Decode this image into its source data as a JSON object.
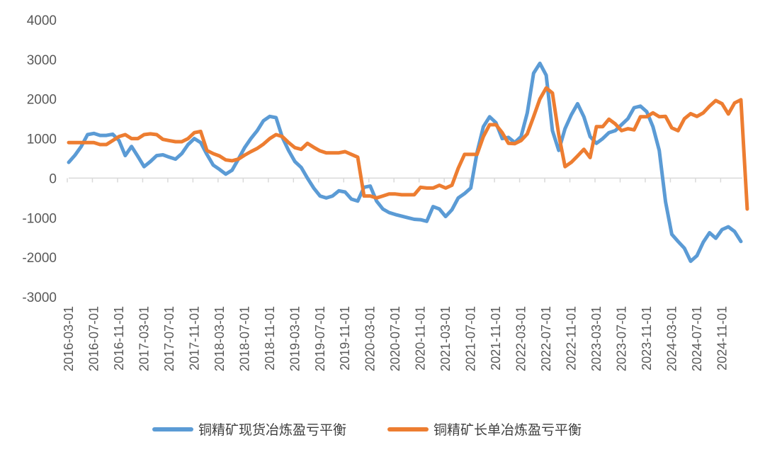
{
  "chart_data": {
    "type": "line",
    "title": "",
    "xlabel": "",
    "ylabel": "",
    "ylim": [
      -3000,
      4000
    ],
    "y_ticks": [
      4000,
      3000,
      2000,
      1000,
      0,
      -1000,
      -2000,
      -3000
    ],
    "x_tick_labels": [
      "2016-03-01",
      "2016-07-01",
      "2016-11-01",
      "2017-03-01",
      "2017-07-01",
      "2017-11-01",
      "2018-03-01",
      "2018-07-01",
      "2018-11-01",
      "2019-03-01",
      "2019-07-01",
      "2019-11-01",
      "2020-03-01",
      "2020-07-01",
      "2020-11-01",
      "2021-03-01",
      "2021-07-01",
      "2021-11-01",
      "2022-03-01",
      "2022-07-01",
      "2022-11-01",
      "2023-03-01",
      "2023-07-01",
      "2023-11-01",
      "2024-03-01",
      "2024-07-01",
      "2024-11-01"
    ],
    "x_start": "2016-03",
    "x_frequency": "monthly",
    "grid": false,
    "legend_position": "bottom",
    "series": [
      {
        "name": "铜精矿现货冶炼盈亏平衡",
        "color": "#5b9bd5",
        "values": [
          400,
          580,
          800,
          1100,
          1130,
          1080,
          1080,
          1110,
          950,
          570,
          800,
          550,
          290,
          420,
          570,
          590,
          530,
          480,
          620,
          850,
          1000,
          900,
          600,
          330,
          220,
          100,
          200,
          480,
          770,
          1000,
          1200,
          1450,
          1560,
          1530,
          1030,
          700,
          420,
          270,
          0,
          -250,
          -450,
          -500,
          -450,
          -320,
          -350,
          -530,
          -580,
          -230,
          -200,
          -580,
          -780,
          -870,
          -920,
          -960,
          -1000,
          -1040,
          -1050,
          -1090,
          -720,
          -780,
          -970,
          -800,
          -500,
          -390,
          -250,
          650,
          1300,
          1550,
          1400,
          1000,
          1030,
          900,
          1050,
          1650,
          2650,
          2900,
          2600,
          1200,
          700,
          1250,
          1600,
          1880,
          1550,
          1050,
          880,
          1000,
          1150,
          1200,
          1350,
          1500,
          1780,
          1820,
          1680,
          1300,
          700,
          -600,
          -1420,
          -1600,
          -1770,
          -2100,
          -1960,
          -1620,
          -1380,
          -1520,
          -1300,
          -1230,
          -1350,
          -1600
        ]
      },
      {
        "name": "铜精矿长单冶炼盈亏平衡",
        "color": "#ed7d31",
        "values": [
          900,
          900,
          900,
          900,
          900,
          850,
          850,
          950,
          1050,
          1100,
          1000,
          1000,
          1100,
          1120,
          1100,
          980,
          950,
          920,
          920,
          1000,
          1150,
          1180,
          700,
          620,
          560,
          460,
          440,
          480,
          580,
          670,
          750,
          860,
          1000,
          1100,
          1050,
          900,
          770,
          730,
          880,
          780,
          690,
          640,
          640,
          640,
          670,
          600,
          530,
          -450,
          -450,
          -500,
          -450,
          -400,
          -400,
          -420,
          -420,
          -420,
          -230,
          -250,
          -250,
          -180,
          -250,
          -180,
          250,
          600,
          600,
          600,
          1050,
          1350,
          1350,
          1150,
          880,
          870,
          950,
          1120,
          1550,
          2000,
          2280,
          2150,
          1100,
          290,
          400,
          560,
          730,
          520,
          1300,
          1300,
          1490,
          1370,
          1200,
          1250,
          1220,
          1550,
          1550,
          1650,
          1550,
          1560,
          1270,
          1200,
          1500,
          1630,
          1560,
          1650,
          1820,
          1960,
          1880,
          1620,
          1900,
          1980,
          -780
        ]
      }
    ]
  }
}
